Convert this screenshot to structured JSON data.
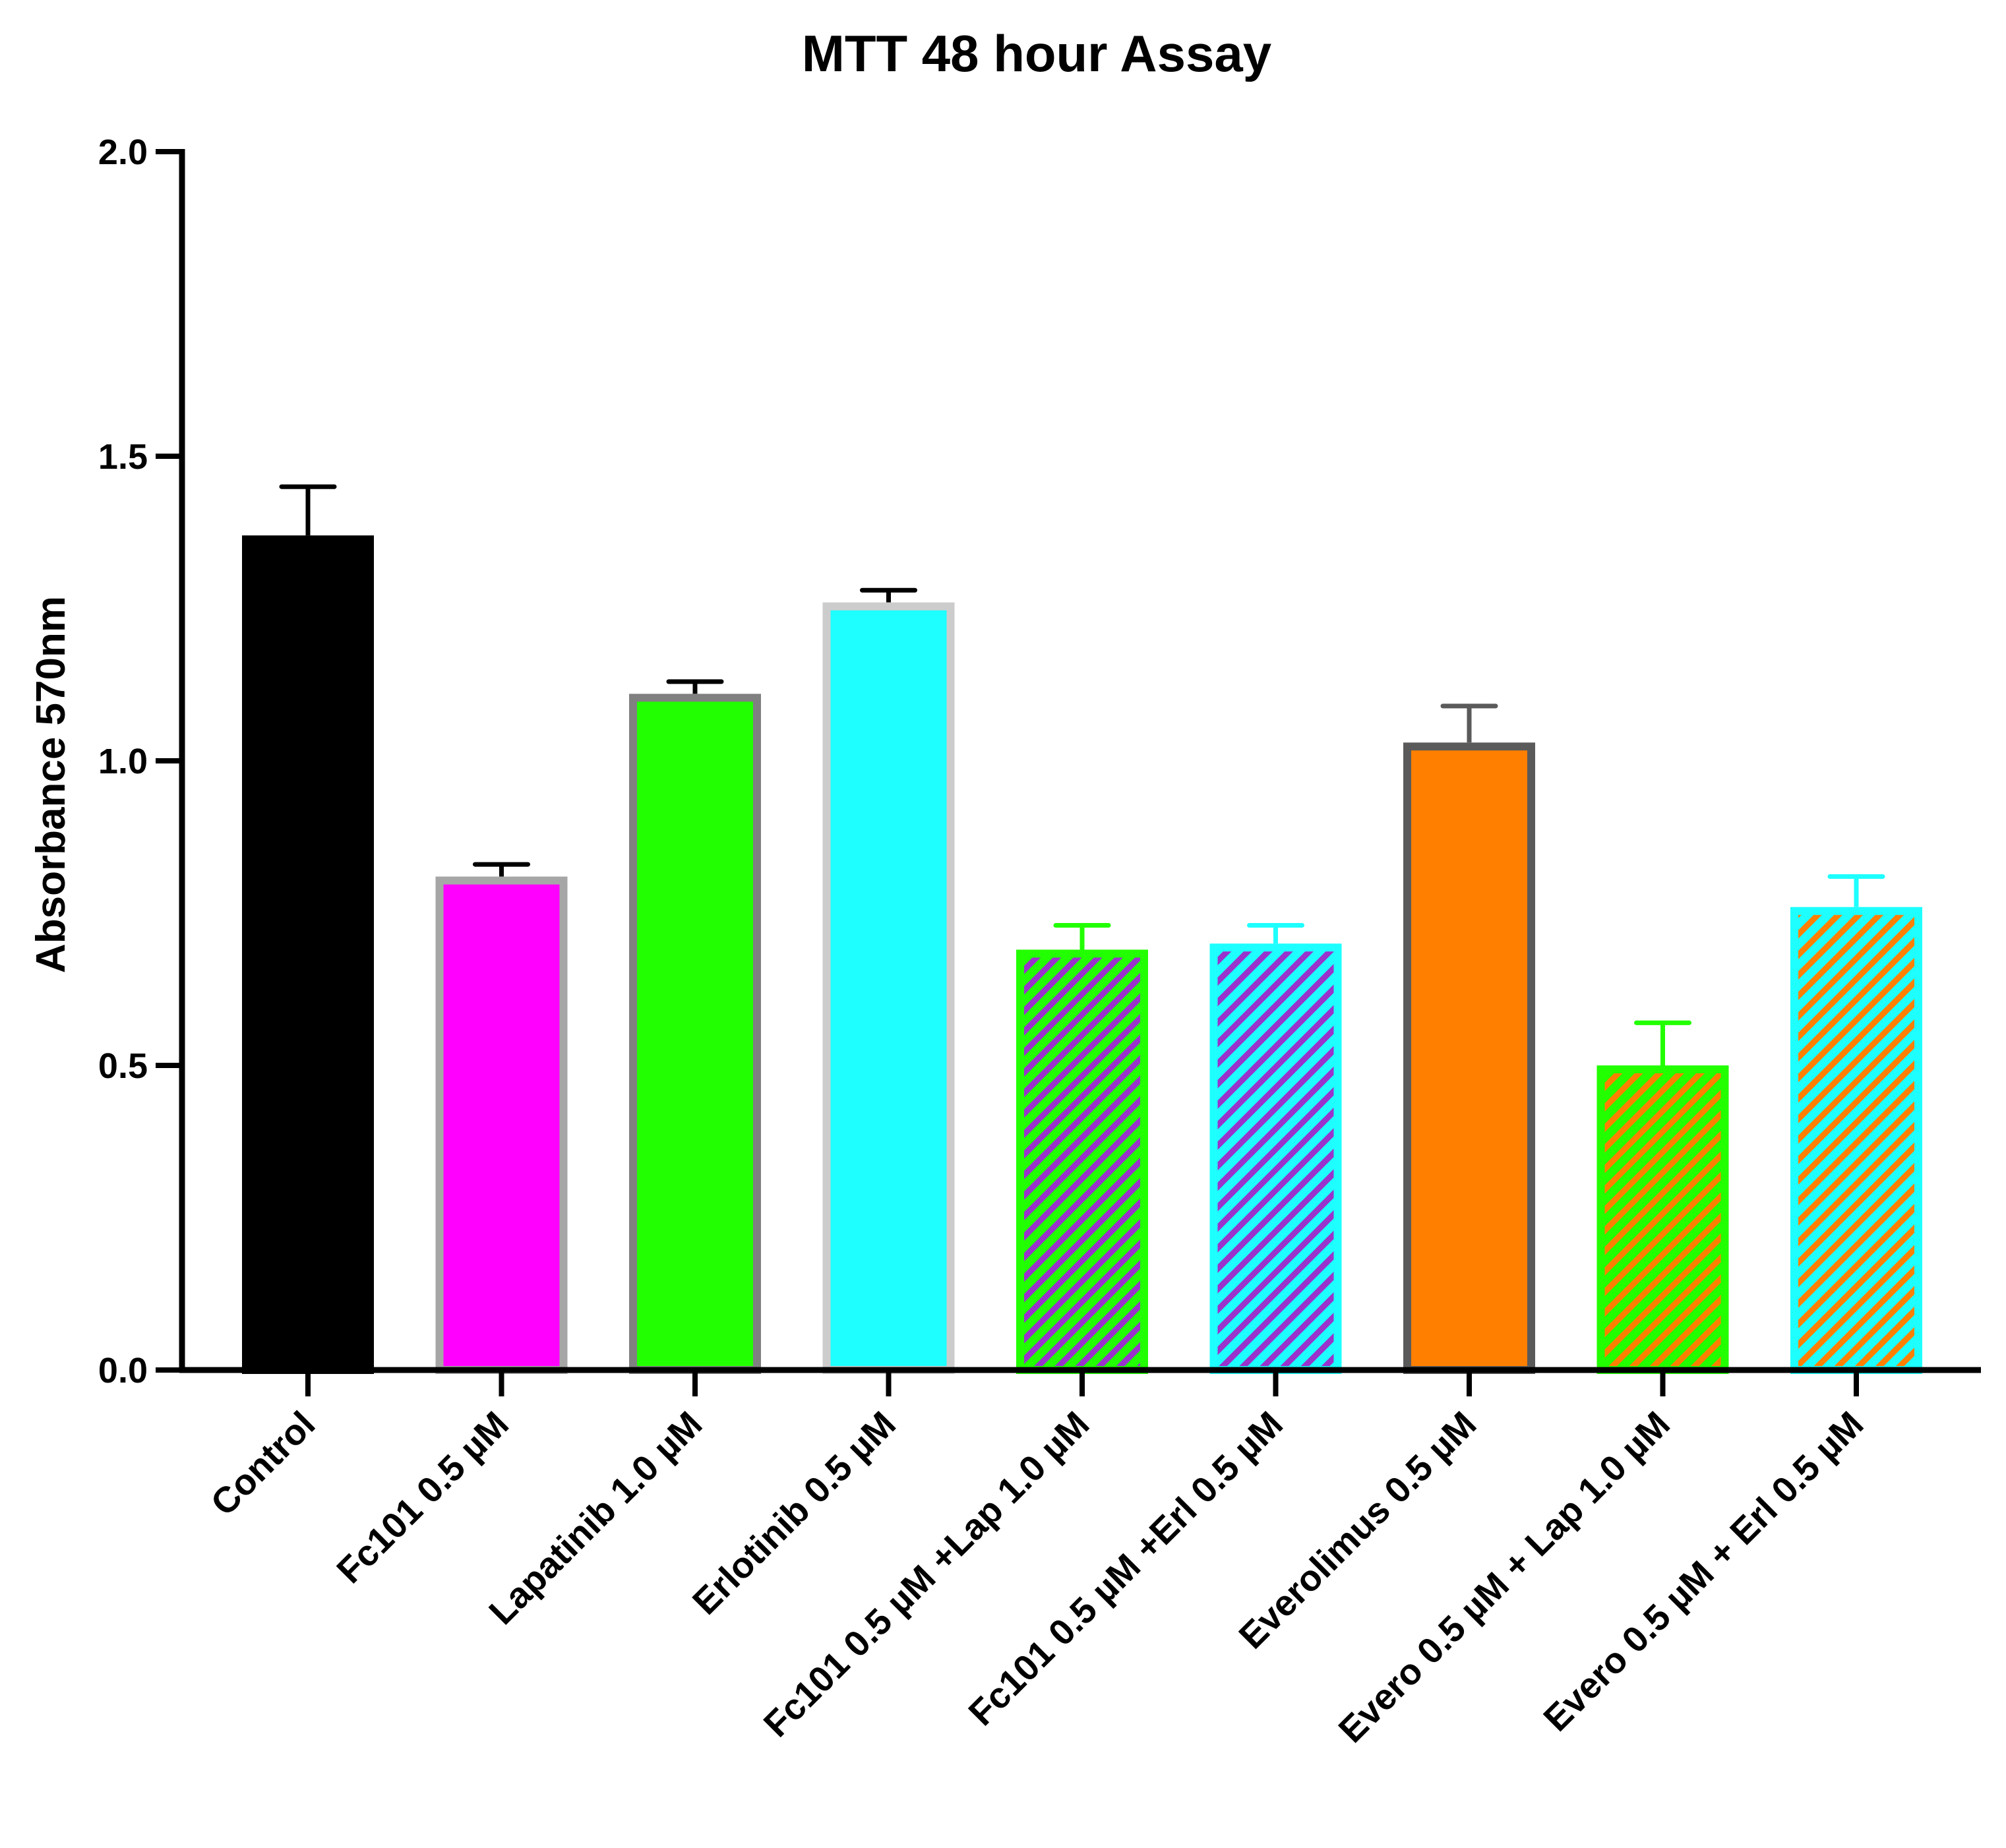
{
  "chart_data": {
    "type": "bar",
    "title": "MTT 48 hour Assay",
    "xlabel": "",
    "ylabel": "Absorbance 570nm",
    "ylim": [
      0,
      2.0
    ],
    "yticks": [
      0.0,
      0.5,
      1.0,
      1.5,
      2.0
    ],
    "ytick_labels": [
      "0.0",
      "0.5",
      "1.0",
      "1.5",
      "2.0"
    ],
    "grid": false,
    "categories": [
      "Control",
      "Fc101 0.5 µM",
      "Lapatinib 1.0 µM",
      "Erlotinib 0.5 µM",
      "Fc101 0.5 µM +Lap 1.0 µM",
      "Fc101 0.5 µM +Erl 0.5 µM",
      "Everolimus 0.5 µM",
      "Evero 0.5 µM + Lap 1.0 µM",
      "Evero 0.5 µM + Erl 0.5 µM"
    ],
    "values": [
      1.37,
      0.81,
      1.11,
      1.26,
      0.69,
      0.7,
      1.03,
      0.5,
      0.76
    ],
    "error_upper": [
      1.45,
      0.83,
      1.13,
      1.28,
      0.73,
      0.73,
      1.09,
      0.57,
      0.81
    ],
    "colors": {
      "fill": [
        "#000000",
        "#ff00ff",
        "#22ff00",
        "#1effff",
        "#22ff00",
        "#1effff",
        "#ff7f00",
        "#22ff00",
        "#1effff"
      ],
      "hatch": [
        "",
        "",
        "",
        "",
        "#9933cc",
        "#9933cc",
        "",
        "#ff7f00",
        "#ff7f00"
      ],
      "border": [
        "#000000",
        "#a6a6a6",
        "#808080",
        "#cccccc",
        "#22ff00",
        "#1effff",
        "#5a5a5a",
        "#22ff00",
        "#1effff"
      ],
      "error": [
        "#000000",
        "#000000",
        "#000000",
        "#000000",
        "#22ff00",
        "#1effff",
        "#5a5a5a",
        "#22ff00",
        "#1effff"
      ]
    }
  }
}
